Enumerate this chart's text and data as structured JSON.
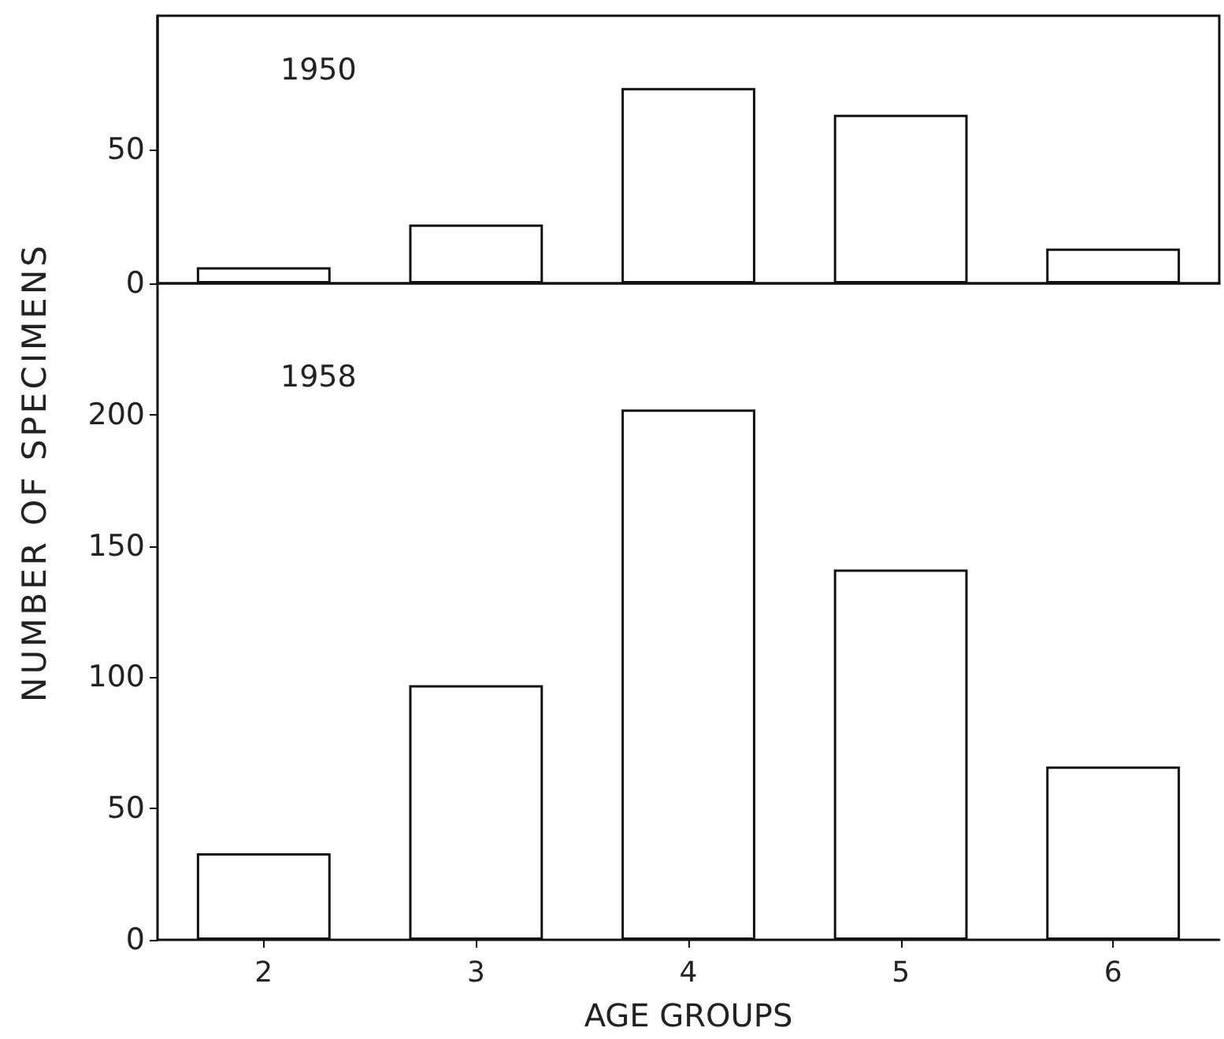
{
  "chart_data": [
    {
      "type": "bar",
      "categories": [
        "2",
        "3",
        "4",
        "5",
        "6"
      ],
      "values": [
        6,
        22,
        73,
        63,
        13
      ],
      "color": "#ffffff",
      "ylim": [
        0,
        100
      ],
      "yticks": [
        0,
        50
      ],
      "tick_labels": "y",
      "grid": false,
      "annotations": [
        "1950"
      ]
    },
    {
      "type": "bar",
      "categories": [
        "2",
        "3",
        "4",
        "5",
        "6"
      ],
      "values": [
        33,
        97,
        202,
        141,
        66
      ],
      "color": "#ffffff",
      "ylim": [
        0,
        250
      ],
      "yticks": [
        0,
        50,
        100,
        150,
        200
      ],
      "xlabel": "AGE GROUPS",
      "ylabel": "NUMBER OF SPECIMENS",
      "grid": false,
      "annotations": [
        "1958"
      ]
    }
  ]
}
